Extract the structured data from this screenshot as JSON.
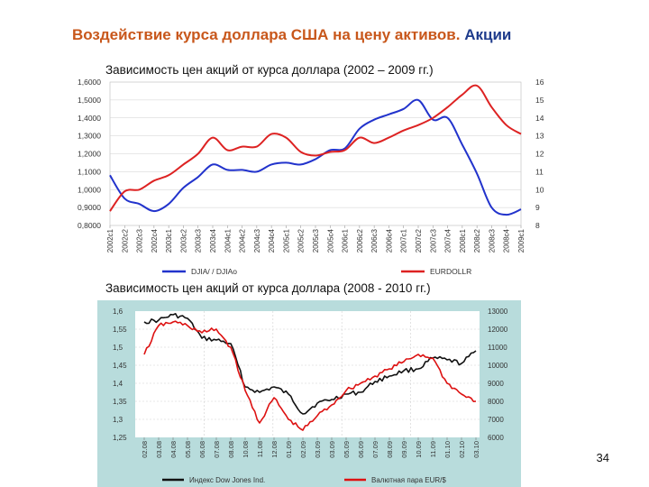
{
  "slide": {
    "title_main": "Воздействие курса доллара США на цену активов.",
    "title_accent": "Акции",
    "page_number": "34"
  },
  "chart_data": [
    {
      "type": "line",
      "title": "Зависимость цен акций от курса доллара (2002 – 2009 гг.)",
      "x": [
        "2002c1",
        "2002c2",
        "2002c3",
        "2002c4",
        "2003c1",
        "2003c2",
        "2003c3",
        "2003c4",
        "2004c1",
        "2004c2",
        "2004c3",
        "2004c4",
        "2005c1",
        "2005c2",
        "2005c3",
        "2005c4",
        "2006c1",
        "2006c2",
        "2006c3",
        "2006c4",
        "2007c1",
        "2007c2",
        "2007c3",
        "2007c4",
        "2008c1",
        "2008c2",
        "2008c3",
        "2008c4",
        "2009c1"
      ],
      "y_left": {
        "ticks": [
          "1,6000",
          "1,5000",
          "1,4000",
          "1,3000",
          "1,2000",
          "1,1000",
          "1,0000",
          "0,9000",
          "0,8000"
        ],
        "range": [
          0.8,
          1.6
        ]
      },
      "y_right": {
        "ticks": [
          "16",
          "15",
          "14",
          "13",
          "12",
          "11",
          "10",
          "9",
          "8"
        ],
        "range": [
          8,
          16
        ]
      },
      "series": [
        {
          "name": "DJIA/ / DJIAo",
          "color": "#2233cc",
          "axis": "right",
          "values": [
            10.8,
            9.5,
            9.2,
            8.8,
            9.2,
            10.1,
            10.7,
            11.4,
            11.1,
            11.1,
            11.0,
            11.4,
            11.5,
            11.4,
            11.7,
            12.2,
            12.3,
            13.4,
            13.9,
            14.2,
            14.5,
            15.0,
            13.9,
            14.0,
            12.5,
            10.9,
            9.0,
            8.6,
            8.9
          ]
        },
        {
          "name": "EURDOLLR",
          "color": "#dd2222",
          "axis": "left",
          "values": [
            0.88,
            0.99,
            1.0,
            1.05,
            1.08,
            1.14,
            1.2,
            1.29,
            1.22,
            1.24,
            1.24,
            1.31,
            1.29,
            1.21,
            1.19,
            1.21,
            1.22,
            1.29,
            1.26,
            1.29,
            1.33,
            1.36,
            1.4,
            1.46,
            1.53,
            1.58,
            1.46,
            1.36,
            1.31
          ]
        }
      ]
    },
    {
      "type": "line",
      "title": "Зависимость цен акций от курса доллара (2008 - 2010 гг.)",
      "x": [
        "02.08",
        "03.08",
        "04.08",
        "05.08",
        "06.08",
        "07.08",
        "08.08",
        "10.08",
        "11.08",
        "12.08",
        "01.09",
        "02.09",
        "03.09",
        "03.09",
        "05.09",
        "06.09",
        "07.09",
        "08.09",
        "09.09",
        "10.09",
        "11.09",
        "01.10",
        "02.10",
        "03.10"
      ],
      "y_left": {
        "ticks": [
          "1,6",
          "1,55",
          "1,5",
          "1,45",
          "1,4",
          "1,35",
          "1,3",
          "1,25"
        ],
        "range": [
          1.25,
          1.6
        ]
      },
      "y_right": {
        "ticks": [
          "13000",
          "12000",
          "11000",
          "10000",
          "9000",
          "8000",
          "7000",
          "6000"
        ],
        "range": [
          6000,
          13000
        ]
      },
      "series": [
        {
          "name": "Индекс Dow Jones Ind.",
          "color": "#111111",
          "axis": "right",
          "values": [
            12400,
            12500,
            12800,
            12600,
            11500,
            11400,
            11200,
            8800,
            8500,
            8800,
            8400,
            7300,
            7900,
            8100,
            8400,
            8500,
            9100,
            9400,
            9700,
            9800,
            10400,
            10300,
            10100,
            10800
          ]
        },
        {
          "name": "Валютная пара EUR/$",
          "color": "#dd1111",
          "axis": "left",
          "values": [
            1.48,
            1.56,
            1.57,
            1.56,
            1.54,
            1.55,
            1.5,
            1.38,
            1.29,
            1.36,
            1.3,
            1.27,
            1.31,
            1.34,
            1.38,
            1.4,
            1.42,
            1.44,
            1.46,
            1.48,
            1.47,
            1.4,
            1.37,
            1.35
          ]
        }
      ]
    }
  ]
}
